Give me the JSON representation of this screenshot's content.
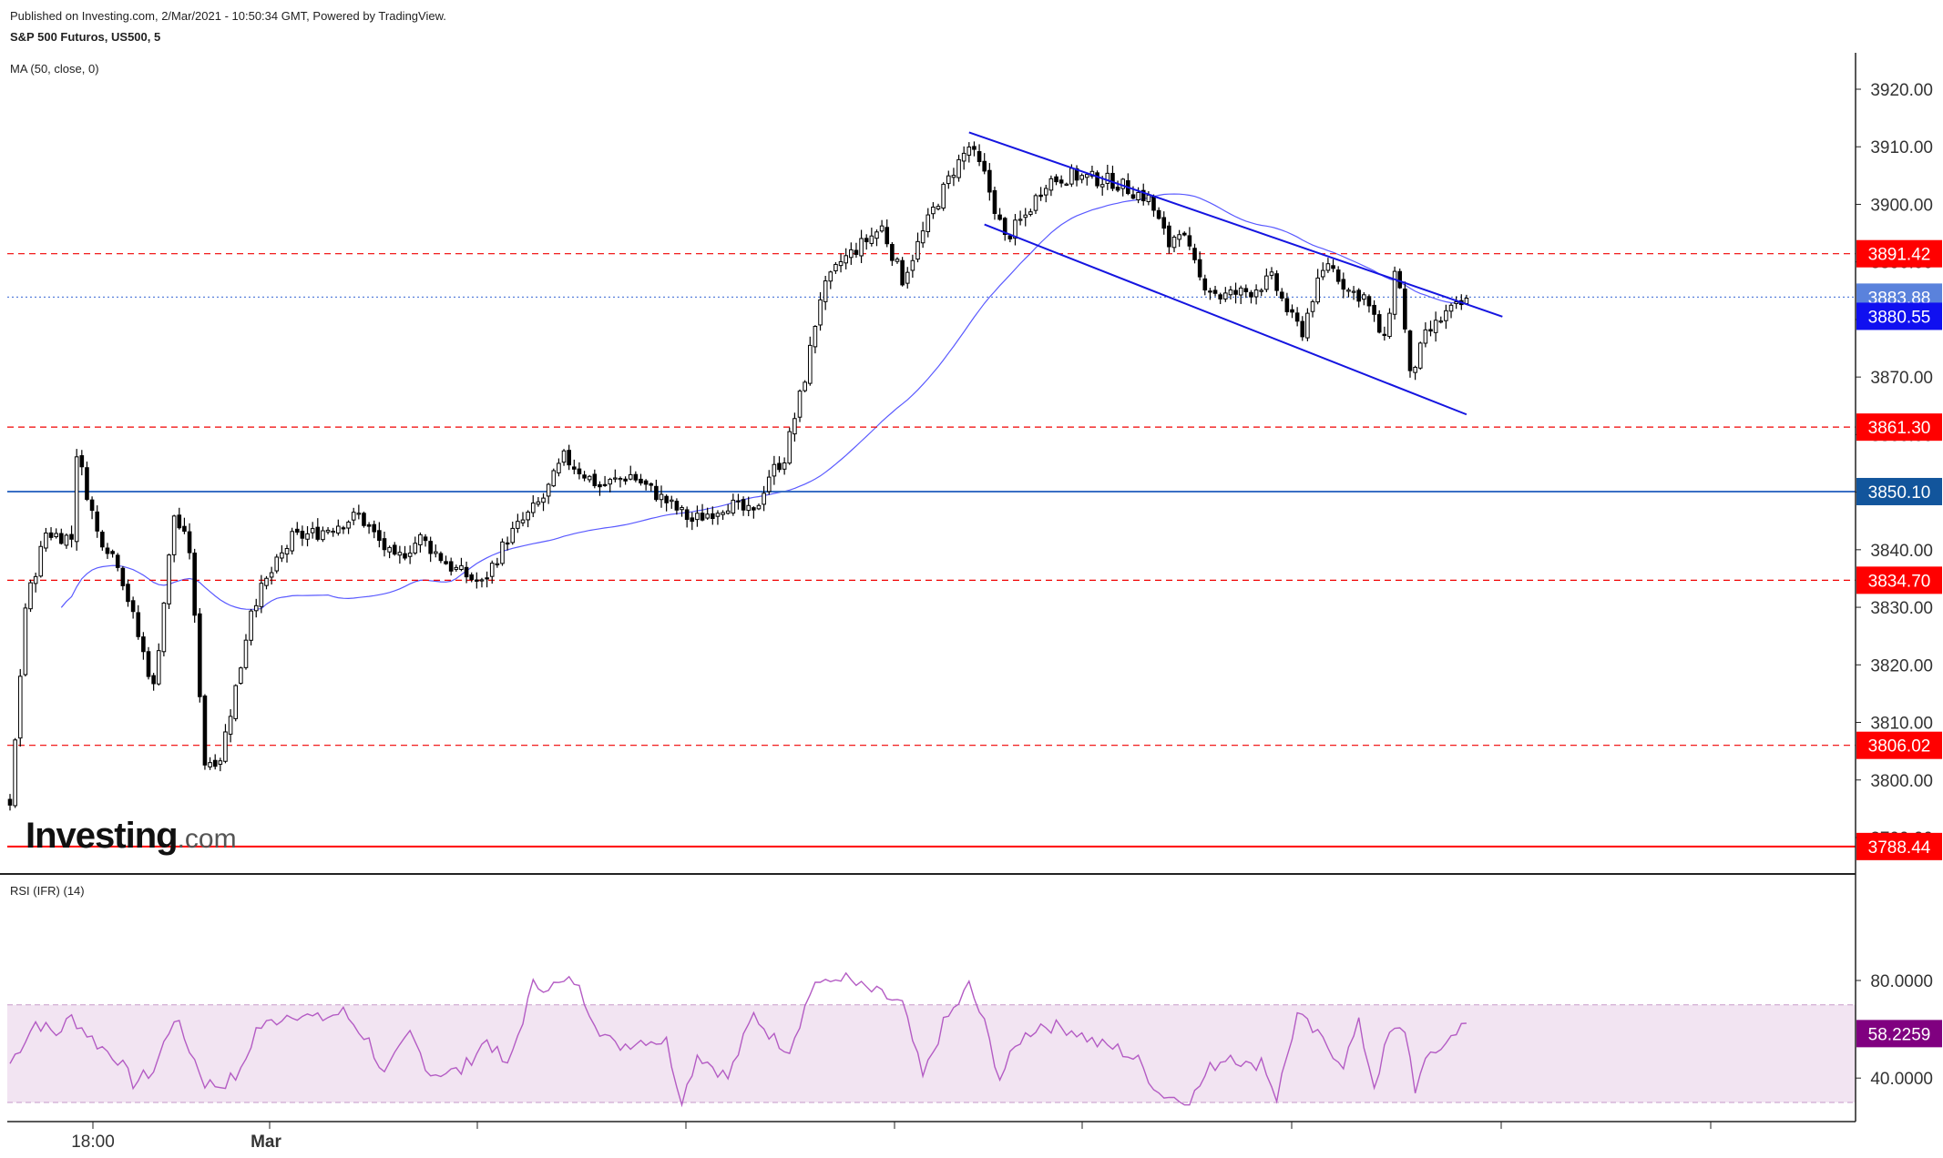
{
  "header": {
    "publish_line": "Published on Investing.com, 2/Mar/2021 - 10:50:34 GMT, Powered by TradingView.",
    "symbol_line": "S&P 500 Futuros, US500, 5",
    "ma_label": "MA (50, close, 0)"
  },
  "rsi_panel": {
    "label": "RSI (IFR) (14)"
  },
  "logo": {
    "main": "Investing",
    "suffix": ".com"
  },
  "colors": {
    "candle": "#000000",
    "ma": "#5a5aff",
    "channel": "#1515e0",
    "resistance": "#f00000",
    "level_blue": "#3a6fc4",
    "rsi": "#b45cc4",
    "rsi_band": "#f2e4f2",
    "price_current_bg": "#5a82dc",
    "price_blue_bg": "#1010f0",
    "price_navy_bg": "#12559c",
    "price_red_bg": "#ff0000",
    "rsi_value_bg": "#800080"
  },
  "chart_data": [
    {
      "type": "candlestick",
      "title": "S&P 500 Futuros, US500, 5",
      "ylim": [
        3786,
        3928
      ],
      "y_ticks": [
        "3920.00",
        "3910.00",
        "3900.00",
        "3890.00",
        "3880.00",
        "3870.00",
        "3860.00",
        "3850.00",
        "3840.00",
        "3830.00",
        "3820.00",
        "3810.00",
        "3800.00",
        "3790.00"
      ],
      "x_ticks": [
        "18:00",
        "Mar"
      ],
      "bar_count": 285,
      "waypoints": [
        [
          0,
          3795
        ],
        [
          3,
          3830
        ],
        [
          7,
          3843
        ],
        [
          12,
          3842
        ],
        [
          13,
          3857
        ],
        [
          17,
          3843
        ],
        [
          21,
          3838
        ],
        [
          25,
          3825
        ],
        [
          28,
          3816
        ],
        [
          32,
          3846
        ],
        [
          35,
          3840
        ],
        [
          38,
          3803
        ],
        [
          41,
          3804
        ],
        [
          45,
          3820
        ],
        [
          47,
          3830
        ],
        [
          55,
          3842
        ],
        [
          60,
          3843
        ],
        [
          68,
          3846
        ],
        [
          75,
          3838
        ],
        [
          80,
          3842
        ],
        [
          86,
          3837
        ],
        [
          92,
          3834
        ],
        [
          97,
          3842
        ],
        [
          104,
          3849
        ],
        [
          108,
          3856
        ],
        [
          115,
          3851
        ],
        [
          121,
          3853
        ],
        [
          127,
          3849
        ],
        [
          133,
          3845
        ],
        [
          140,
          3848
        ],
        [
          145,
          3846
        ],
        [
          148,
          3853
        ],
        [
          151,
          3856
        ],
        [
          155,
          3870
        ],
        [
          158,
          3884
        ],
        [
          162,
          3890
        ],
        [
          170,
          3896
        ],
        [
          174,
          3887
        ],
        [
          180,
          3899
        ],
        [
          184,
          3906
        ],
        [
          187,
          3910
        ],
        [
          190,
          3905
        ],
        [
          194,
          3894
        ],
        [
          198,
          3898
        ],
        [
          202,
          3904
        ],
        [
          207,
          3905
        ],
        [
          215,
          3904
        ],
        [
          222,
          3901
        ],
        [
          226,
          3893
        ],
        [
          228,
          3896
        ],
        [
          232,
          3887
        ],
        [
          236,
          3884
        ],
        [
          242,
          3885
        ],
        [
          246,
          3887
        ],
        [
          250,
          3880
        ],
        [
          252,
          3878
        ],
        [
          254,
          3884
        ],
        [
          257,
          3890
        ],
        [
          261,
          3885
        ],
        [
          264,
          3884
        ],
        [
          268,
          3876
        ],
        [
          270,
          3888
        ],
        [
          271,
          3886
        ],
        [
          273,
          3870
        ],
        [
          276,
          3877
        ],
        [
          280,
          3881
        ],
        [
          284,
          3883
        ]
      ],
      "ohlc_note": "individual OHLC values are not labeled; series reconstructed from the visible price path",
      "ma_label": "MA (50, close, 0)",
      "horizontal_levels": [
        {
          "value": 3891.42,
          "label": "3891.42",
          "style": "dashed",
          "color": "#f00000"
        },
        {
          "value": 3883.88,
          "label": "3883.88",
          "style": "dotted",
          "color": "#5a82dc"
        },
        {
          "value": 3880.55,
          "label": "3880.55",
          "style": "none",
          "color": "#1010f0"
        },
        {
          "value": 3861.3,
          "label": "3861.30",
          "style": "dashed",
          "color": "#f00000"
        },
        {
          "value": 3850.1,
          "label": "3850.10",
          "style": "solid",
          "color": "#3a6fc4"
        },
        {
          "value": 3834.7,
          "label": "3834.70",
          "style": "dashed",
          "color": "#f00000"
        },
        {
          "value": 3806.02,
          "label": "3806.02",
          "style": "dashed",
          "color": "#f00000"
        },
        {
          "value": 3788.44,
          "label": "3788.44",
          "style": "solid",
          "color": "#ff0000"
        }
      ],
      "channel": {
        "upper": [
          [
            187,
            3912.5
          ],
          [
            291,
            3880.5
          ]
        ],
        "lower": [
          [
            190,
            3896.5
          ],
          [
            284,
            3863.5
          ]
        ]
      }
    },
    {
      "type": "line",
      "title": "RSI (IFR) (14)",
      "ylim": [
        28,
        86
      ],
      "y_ticks": [
        "80.0000",
        "40.0000"
      ],
      "band": [
        30,
        70
      ],
      "last_value": "58.2259",
      "waypoints": [
        [
          0,
          46
        ],
        [
          5,
          63
        ],
        [
          9,
          58
        ],
        [
          12,
          65
        ],
        [
          17,
          54
        ],
        [
          21,
          48
        ],
        [
          24,
          38
        ],
        [
          28,
          43
        ],
        [
          32,
          65
        ],
        [
          35,
          52
        ],
        [
          38,
          38
        ],
        [
          41,
          37
        ],
        [
          45,
          42
        ],
        [
          48,
          60
        ],
        [
          55,
          67
        ],
        [
          60,
          64
        ],
        [
          65,
          67
        ],
        [
          70,
          55
        ],
        [
          73,
          41
        ],
        [
          78,
          58
        ],
        [
          82,
          42
        ],
        [
          88,
          43
        ],
        [
          93,
          56
        ],
        [
          97,
          44
        ],
        [
          102,
          78
        ],
        [
          107,
          78
        ],
        [
          110,
          80
        ],
        [
          115,
          60
        ],
        [
          118,
          53
        ],
        [
          124,
          56
        ],
        [
          128,
          55
        ],
        [
          131,
          30
        ],
        [
          134,
          50
        ],
        [
          140,
          40
        ],
        [
          145,
          66
        ],
        [
          149,
          56
        ],
        [
          152,
          52
        ],
        [
          155,
          69
        ],
        [
          157,
          80
        ],
        [
          159,
          78
        ],
        [
          162,
          82
        ],
        [
          165,
          78
        ],
        [
          170,
          74
        ],
        [
          174,
          70
        ],
        [
          178,
          40
        ],
        [
          182,
          62
        ],
        [
          185,
          71
        ],
        [
          187,
          78
        ],
        [
          190,
          62
        ],
        [
          193,
          40
        ],
        [
          197,
          56
        ],
        [
          201,
          62
        ],
        [
          207,
          60
        ],
        [
          212,
          54
        ],
        [
          216,
          52
        ],
        [
          220,
          47
        ],
        [
          224,
          34
        ],
        [
          230,
          30
        ],
        [
          234,
          44
        ],
        [
          238,
          50
        ],
        [
          242,
          44
        ],
        [
          244,
          48
        ],
        [
          247,
          32
        ],
        [
          251,
          66
        ],
        [
          256,
          55
        ],
        [
          260,
          46
        ],
        [
          263,
          62
        ],
        [
          266,
          37
        ],
        [
          269,
          58
        ],
        [
          272,
          60
        ],
        [
          274,
          36
        ],
        [
          277,
          50
        ],
        [
          280,
          54
        ],
        [
          283,
          63
        ],
        [
          285,
          58
        ]
      ]
    }
  ]
}
